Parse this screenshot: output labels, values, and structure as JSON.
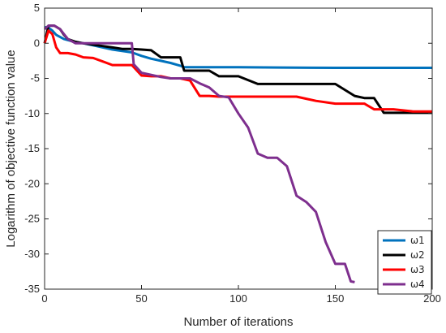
{
  "chart_data": {
    "type": "line",
    "title": "",
    "xlabel": "Number of iterations",
    "ylabel": "Logarithm of objective function value",
    "xlim": [
      0,
      200
    ],
    "ylim": [
      -35,
      5
    ],
    "xticks": [
      0,
      50,
      100,
      150,
      200
    ],
    "yticks": [
      5,
      0,
      -5,
      -10,
      -15,
      -20,
      -25,
      -30,
      -35
    ],
    "grid": false,
    "legend_position": "bottom-right",
    "series": [
      {
        "name": "ω1",
        "color": "#0072BD",
        "x": [
          0,
          2,
          4,
          6,
          10,
          14,
          20,
          25,
          30,
          35,
          45,
          50,
          55,
          60,
          65,
          70,
          72,
          80,
          90,
          100,
          120,
          150,
          200
        ],
        "y": [
          2.3,
          2.2,
          1.8,
          1.2,
          0.6,
          0.3,
          0.0,
          -0.3,
          -0.6,
          -0.9,
          -1.3,
          -1.8,
          -2.2,
          -2.5,
          -2.8,
          -3.2,
          -3.4,
          -3.4,
          -3.4,
          -3.4,
          -3.45,
          -3.5,
          -3.5
        ]
      },
      {
        "name": "ω2",
        "color": "#000000",
        "x": [
          0,
          2,
          5,
          8,
          10,
          12,
          16,
          20,
          25,
          30,
          35,
          40,
          45,
          50,
          55,
          60,
          65,
          70,
          72,
          80,
          85,
          90,
          100,
          110,
          120,
          130,
          140,
          150,
          160,
          165,
          170,
          175,
          180,
          190,
          200
        ],
        "y": [
          0.0,
          2.5,
          2.5,
          2.0,
          1.2,
          0.6,
          0.2,
          0.0,
          -0.2,
          -0.4,
          -0.6,
          -0.8,
          -0.8,
          -0.9,
          -1.0,
          -2.0,
          -2.0,
          -2.0,
          -3.9,
          -3.9,
          -3.9,
          -4.7,
          -4.7,
          -5.8,
          -5.8,
          -5.8,
          -5.8,
          -5.8,
          -7.5,
          -7.8,
          -7.8,
          -9.9,
          -9.9,
          -9.9,
          -9.9
        ]
      },
      {
        "name": "ω3",
        "color": "#FF0000",
        "x": [
          0,
          2,
          4,
          6,
          8,
          12,
          16,
          20,
          25,
          30,
          35,
          40,
          45,
          50,
          55,
          60,
          65,
          70,
          75,
          80,
          85,
          90,
          100,
          110,
          120,
          130,
          140,
          150,
          160,
          165,
          170,
          180,
          190,
          200
        ],
        "y": [
          0.0,
          1.8,
          1.3,
          -0.6,
          -1.4,
          -1.4,
          -1.6,
          -2.0,
          -2.1,
          -2.6,
          -3.1,
          -3.1,
          -3.1,
          -4.6,
          -4.7,
          -4.7,
          -5.0,
          -5.0,
          -5.3,
          -7.5,
          -7.5,
          -7.6,
          -7.6,
          -7.6,
          -7.6,
          -7.6,
          -8.2,
          -8.6,
          -8.6,
          -8.6,
          -9.4,
          -9.4,
          -9.7,
          -9.7
        ]
      },
      {
        "name": "ω4",
        "color": "#7E2F8E",
        "x": [
          0,
          2,
          5,
          8,
          10,
          12,
          16,
          20,
          25,
          30,
          35,
          40,
          45,
          46,
          50,
          55,
          60,
          65,
          70,
          75,
          80,
          85,
          90,
          95,
          100,
          105,
          110,
          115,
          120,
          125,
          130,
          135,
          140,
          145,
          150,
          155,
          158,
          160
        ],
        "y": [
          2.0,
          2.5,
          2.5,
          2.0,
          1.3,
          0.6,
          0.0,
          0.0,
          0.0,
          0.0,
          0.0,
          0.0,
          0.0,
          -3.0,
          -4.2,
          -4.5,
          -4.8,
          -5.0,
          -5.0,
          -5.0,
          -5.7,
          -6.3,
          -7.5,
          -7.7,
          -10.0,
          -12.0,
          -15.7,
          -16.3,
          -16.3,
          -17.5,
          -21.7,
          -22.6,
          -24.0,
          -28.3,
          -31.4,
          -31.4,
          -33.9,
          -34.0
        ]
      }
    ]
  }
}
